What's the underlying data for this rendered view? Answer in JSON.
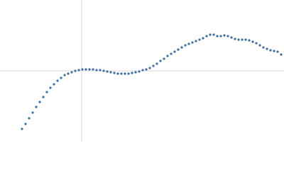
{
  "chart_data": {
    "type": "scatter",
    "color": "#3b6ea5",
    "zero_lines": true,
    "xlim": [
      -115,
      285
    ],
    "ylim": [
      -100,
      100
    ],
    "x": [
      -84,
      -79,
      -74,
      -69,
      -64,
      -59,
      -54,
      -49,
      -44,
      -39,
      -34,
      -29,
      -24,
      -19,
      -14,
      -9,
      -4,
      1,
      6,
      11,
      16,
      21,
      26,
      31,
      36,
      41,
      46,
      51,
      56,
      61,
      66,
      71,
      76,
      81,
      86,
      91,
      96,
      101,
      106,
      111,
      116,
      121,
      126,
      131,
      136,
      141,
      146,
      151,
      156,
      161,
      166,
      171,
      176,
      181,
      186,
      191,
      196,
      201,
      206,
      211,
      216,
      221,
      226,
      231,
      236,
      241,
      246,
      251,
      256,
      261,
      266,
      271,
      276,
      281
    ],
    "values": [
      -82,
      -75,
      -67,
      -59,
      -51,
      -44,
      -37,
      -30,
      -24,
      -19,
      -14,
      -10,
      -6,
      -4,
      -2,
      0,
      1,
      2,
      2,
      2,
      2,
      1,
      1,
      0,
      -1,
      -2,
      -3,
      -4,
      -4,
      -4,
      -4,
      -3,
      -2,
      -1,
      1,
      2,
      4,
      7,
      10,
      14,
      17,
      21,
      24,
      27,
      30,
      33,
      36,
      38,
      40,
      42,
      44,
      46,
      49,
      51,
      51,
      49,
      49,
      50,
      49,
      47,
      45,
      44,
      44,
      44,
      43,
      41,
      39,
      36,
      33,
      31,
      29,
      28,
      27,
      23
    ]
  }
}
